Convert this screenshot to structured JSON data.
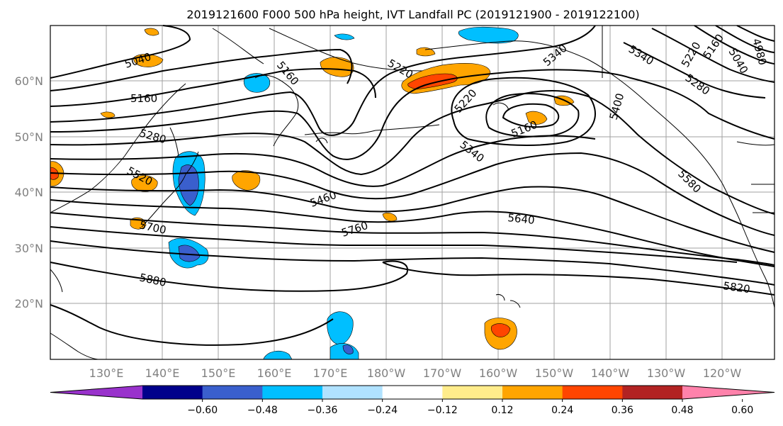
{
  "title": "2019121600 F000 500 hPa height, IVT Landfall PC (2019121900 - 2019122100)",
  "lat_labels": [
    "60°N",
    "50°N",
    "40°N",
    "30°N",
    "20°N"
  ],
  "lon_labels": [
    "130°E",
    "140°E",
    "150°E",
    "160°E",
    "170°E",
    "180°W",
    "170°W",
    "160°W",
    "150°W",
    "140°W",
    "130°W",
    "120°W"
  ],
  "contour_labels": [
    "5040",
    "5160",
    "5160",
    "5220",
    "5220",
    "5340",
    "5340",
    "5160",
    "5400",
    "5280",
    "5280",
    "5220",
    "5160",
    "5040",
    "4980",
    "5340",
    "5520",
    "5460",
    "5580",
    "5640",
    "5700",
    "5760",
    "5880",
    "5820"
  ],
  "colorbar": {
    "ticks": [
      "−0.60",
      "−0.48",
      "−0.36",
      "−0.24",
      "−0.12",
      "0.12",
      "0.24",
      "0.36",
      "0.48",
      "0.60"
    ],
    "colors": [
      "#9932cc",
      "#00008b",
      "#3a5fcd",
      "#00bfff",
      "#b0e2ff",
      "#ffffff",
      "#ffec8b",
      "#ffa500",
      "#ff4500",
      "#b22222",
      "#ff82ab"
    ]
  },
  "map_colors": {
    "coast": "#000000",
    "contour": "#000000",
    "grid": "#a0a0a0"
  }
}
